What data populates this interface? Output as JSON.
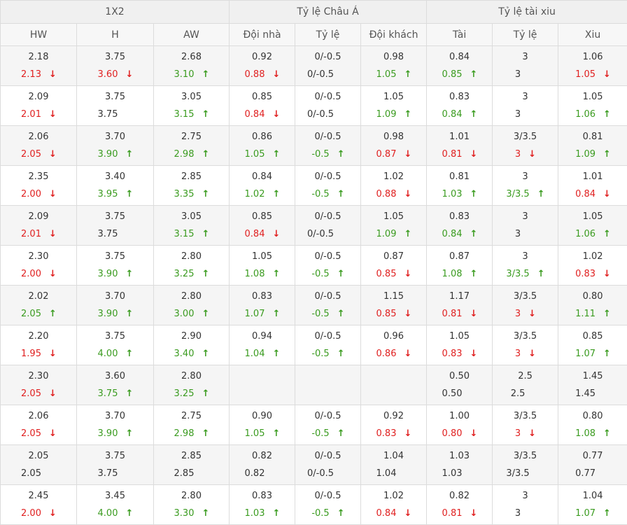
{
  "groups": [
    "1X2",
    "Tỷ lệ Châu Á",
    "Tỷ lệ tài xiu"
  ],
  "columns": [
    "HW",
    "H",
    "AW",
    "Đội nhà",
    "Tỷ lệ",
    "Đội khách",
    "Tài",
    "Tỷ lệ",
    "Xiu"
  ],
  "icons": {
    "up": "arrow-up-icon",
    "down": "arrow-down-icon"
  },
  "colors": {
    "up": "#3a9b1f",
    "down": "#e02020"
  },
  "rows": [
    [
      [
        "2.18",
        "2.13",
        "down"
      ],
      [
        "3.75",
        "3.60",
        "down"
      ],
      [
        "2.68",
        "3.10",
        "up"
      ],
      [
        "0.92",
        "0.88",
        "down"
      ],
      [
        "0/-0.5",
        "0/-0.5",
        ""
      ],
      [
        "0.98",
        "1.05",
        "up"
      ],
      [
        "0.84",
        "0.85",
        "up"
      ],
      [
        "3",
        "3",
        ""
      ],
      [
        "1.06",
        "1.05",
        "down"
      ]
    ],
    [
      [
        "2.09",
        "2.01",
        "down"
      ],
      [
        "3.75",
        "3.75",
        ""
      ],
      [
        "3.05",
        "3.15",
        "up"
      ],
      [
        "0.85",
        "0.84",
        "down"
      ],
      [
        "0/-0.5",
        "0/-0.5",
        ""
      ],
      [
        "1.05",
        "1.09",
        "up"
      ],
      [
        "0.83",
        "0.84",
        "up"
      ],
      [
        "3",
        "3",
        ""
      ],
      [
        "1.05",
        "1.06",
        "up"
      ]
    ],
    [
      [
        "2.06",
        "2.05",
        "down"
      ],
      [
        "3.70",
        "3.90",
        "up"
      ],
      [
        "2.75",
        "2.98",
        "up"
      ],
      [
        "0.86",
        "1.05",
        "up"
      ],
      [
        "0/-0.5",
        "-0.5",
        "up"
      ],
      [
        "0.98",
        "0.87",
        "down"
      ],
      [
        "1.01",
        "0.81",
        "down"
      ],
      [
        "3/3.5",
        "3",
        "down"
      ],
      [
        "0.81",
        "1.09",
        "up"
      ]
    ],
    [
      [
        "2.35",
        "2.00",
        "down"
      ],
      [
        "3.40",
        "3.95",
        "up"
      ],
      [
        "2.85",
        "3.35",
        "up"
      ],
      [
        "0.84",
        "1.02",
        "up"
      ],
      [
        "0/-0.5",
        "-0.5",
        "up"
      ],
      [
        "1.02",
        "0.88",
        "down"
      ],
      [
        "0.81",
        "1.03",
        "up"
      ],
      [
        "3",
        "3/3.5",
        "up"
      ],
      [
        "1.01",
        "0.84",
        "down"
      ]
    ],
    [
      [
        "2.09",
        "2.01",
        "down"
      ],
      [
        "3.75",
        "3.75",
        ""
      ],
      [
        "3.05",
        "3.15",
        "up"
      ],
      [
        "0.85",
        "0.84",
        "down"
      ],
      [
        "0/-0.5",
        "0/-0.5",
        ""
      ],
      [
        "1.05",
        "1.09",
        "up"
      ],
      [
        "0.83",
        "0.84",
        "up"
      ],
      [
        "3",
        "3",
        ""
      ],
      [
        "1.05",
        "1.06",
        "up"
      ]
    ],
    [
      [
        "2.30",
        "2.00",
        "down"
      ],
      [
        "3.75",
        "3.90",
        "up"
      ],
      [
        "2.80",
        "3.25",
        "up"
      ],
      [
        "1.05",
        "1.08",
        "up"
      ],
      [
        "0/-0.5",
        "-0.5",
        "up"
      ],
      [
        "0.87",
        "0.85",
        "down"
      ],
      [
        "0.87",
        "1.08",
        "up"
      ],
      [
        "3",
        "3/3.5",
        "up"
      ],
      [
        "1.02",
        "0.83",
        "down"
      ]
    ],
    [
      [
        "2.02",
        "2.05",
        "up"
      ],
      [
        "3.70",
        "3.90",
        "up"
      ],
      [
        "2.80",
        "3.00",
        "up"
      ],
      [
        "0.83",
        "1.07",
        "up"
      ],
      [
        "0/-0.5",
        "-0.5",
        "up"
      ],
      [
        "1.15",
        "0.85",
        "down"
      ],
      [
        "1.17",
        "0.81",
        "down"
      ],
      [
        "3/3.5",
        "3",
        "down"
      ],
      [
        "0.80",
        "1.11",
        "up"
      ]
    ],
    [
      [
        "2.20",
        "1.95",
        "down"
      ],
      [
        "3.75",
        "4.00",
        "up"
      ],
      [
        "2.90",
        "3.40",
        "up"
      ],
      [
        "0.94",
        "1.04",
        "up"
      ],
      [
        "0/-0.5",
        "-0.5",
        "up"
      ],
      [
        "0.96",
        "0.86",
        "down"
      ],
      [
        "1.05",
        "0.83",
        "down"
      ],
      [
        "3/3.5",
        "3",
        "down"
      ],
      [
        "0.85",
        "1.07",
        "up"
      ]
    ],
    [
      [
        "2.30",
        "2.05",
        "down"
      ],
      [
        "3.60",
        "3.75",
        "up"
      ],
      [
        "2.80",
        "3.25",
        "up"
      ],
      [
        "",
        "",
        ""
      ],
      [
        "",
        "",
        ""
      ],
      [
        "",
        "",
        ""
      ],
      [
        "0.50",
        "0.50",
        ""
      ],
      [
        "2.5",
        "2.5",
        ""
      ],
      [
        "1.45",
        "1.45",
        ""
      ]
    ],
    [
      [
        "2.06",
        "2.05",
        "down"
      ],
      [
        "3.70",
        "3.90",
        "up"
      ],
      [
        "2.75",
        "2.98",
        "up"
      ],
      [
        "0.90",
        "1.05",
        "up"
      ],
      [
        "0/-0.5",
        "-0.5",
        "up"
      ],
      [
        "0.92",
        "0.83",
        "down"
      ],
      [
        "1.00",
        "0.80",
        "down"
      ],
      [
        "3/3.5",
        "3",
        "down"
      ],
      [
        "0.80",
        "1.08",
        "up"
      ]
    ],
    [
      [
        "2.05",
        "2.05",
        ""
      ],
      [
        "3.75",
        "3.75",
        ""
      ],
      [
        "2.85",
        "2.85",
        ""
      ],
      [
        "0.82",
        "0.82",
        ""
      ],
      [
        "0/-0.5",
        "0/-0.5",
        ""
      ],
      [
        "1.04",
        "1.04",
        ""
      ],
      [
        "1.03",
        "1.03",
        ""
      ],
      [
        "3/3.5",
        "3/3.5",
        ""
      ],
      [
        "0.77",
        "0.77",
        ""
      ]
    ],
    [
      [
        "2.45",
        "2.00",
        "down"
      ],
      [
        "3.45",
        "4.00",
        "up"
      ],
      [
        "2.80",
        "3.30",
        "up"
      ],
      [
        "0.83",
        "1.03",
        "up"
      ],
      [
        "0/-0.5",
        "-0.5",
        "up"
      ],
      [
        "1.02",
        "0.84",
        "down"
      ],
      [
        "0.82",
        "0.81",
        "down"
      ],
      [
        "3",
        "3",
        ""
      ],
      [
        "1.04",
        "1.07",
        "up"
      ]
    ]
  ]
}
